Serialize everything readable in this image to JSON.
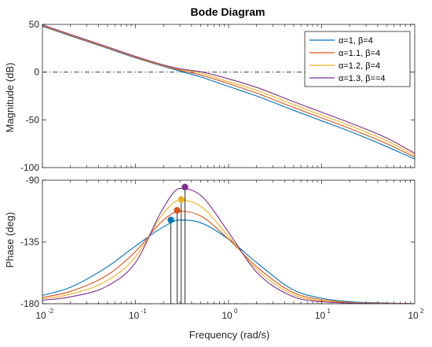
{
  "chart_data": {
    "type": "line",
    "title": "Bode Diagram",
    "xlabel": "Frequency  (rad/s)",
    "x_scale": "log",
    "xlim": [
      0.01,
      100
    ],
    "x_ticks": [
      0.01,
      0.1,
      1,
      10,
      100
    ],
    "x_tick_labels": [
      "10",
      "10",
      "10",
      "10",
      "10"
    ],
    "x_tick_exponents": [
      "-2",
      "-1",
      "0",
      "1",
      "2"
    ],
    "x": [
      0.01,
      0.02,
      0.05,
      0.1,
      0.2,
      0.3,
      0.5,
      1,
      2,
      5,
      10,
      20,
      50,
      100
    ],
    "grid": false,
    "legend_position": "top-right",
    "panels": [
      {
        "name": "magnitude",
        "ylabel": "Magnitude (dB)",
        "ylim": [
          -100,
          50
        ],
        "yticks": [
          -100,
          -50,
          0,
          50
        ],
        "reference_line": 0,
        "series": [
          {
            "name": "α=1, β=4",
            "color": "#0072BD",
            "values": [
              48,
              38,
              25,
              15,
              6,
              1,
              -5,
              -15,
              -25,
              -40,
              -51,
              -62,
              -78,
              -91
            ]
          },
          {
            "name": "α=1.1, β=4",
            "color": "#D95319",
            "values": [
              48.5,
              38.5,
              25.5,
              15.5,
              6.5,
              2,
              -3,
              -12,
              -22,
              -37,
              -48,
              -59,
              -75,
              -89
            ]
          },
          {
            "name": "α=1.2, β=4",
            "color": "#EDB120",
            "values": [
              49,
              39,
              26,
              16,
              7,
              3,
              -1,
              -10,
              -19,
              -34,
              -45,
              -56,
              -72,
              -87
            ]
          },
          {
            "name": "α=1.3, β==4",
            "color": "#7E2F8E",
            "values": [
              49.5,
              39.5,
              26.5,
              16.5,
              7.5,
              3.5,
              0.5,
              -7,
              -16,
              -31,
              -42,
              -53,
              -69,
              -85
            ]
          }
        ]
      },
      {
        "name": "phase",
        "ylabel": "Phase (deg)",
        "ylim": [
          -180,
          -90
        ],
        "yticks": [
          -180,
          -135,
          -90
        ],
        "reference_line": -180,
        "series": [
          {
            "name": "α=1, β=4",
            "color": "#0072BD",
            "values": [
              -174,
              -168,
              -153,
              -138,
              -124,
              -119,
              -121,
              -133,
              -150,
              -170,
              -176,
              -178.5,
              -179.5,
              -180
            ],
            "peak": {
              "x": 0.24,
              "y": -119
            }
          },
          {
            "name": "α=1.1, β=4",
            "color": "#D95319",
            "values": [
              -175.5,
              -171,
              -159,
              -142,
              -119,
              -112.5,
              -116,
              -133,
              -153,
              -172,
              -177,
              -179,
              -179.7,
              -180
            ],
            "peak": {
              "x": 0.28,
              "y": -112
            }
          },
          {
            "name": "α=1.2, β=4",
            "color": "#EDB120",
            "values": [
              -176.5,
              -173,
              -163,
              -146,
              -114,
              -104.5,
              -109,
              -131,
              -155,
              -173.5,
              -178,
              -179.2,
              -179.8,
              -180
            ],
            "peak": {
              "x": 0.31,
              "y": -104
            }
          },
          {
            "name": "α=1.3, β==4",
            "color": "#7E2F8E",
            "values": [
              -177.5,
              -175,
              -167,
              -150,
              -110,
              -96,
              -101,
              -128,
              -157,
              -175,
              -178.5,
              -179.5,
              -179.9,
              -180
            ],
            "peak": {
              "x": 0.34,
              "y": -95
            }
          }
        ]
      }
    ]
  }
}
